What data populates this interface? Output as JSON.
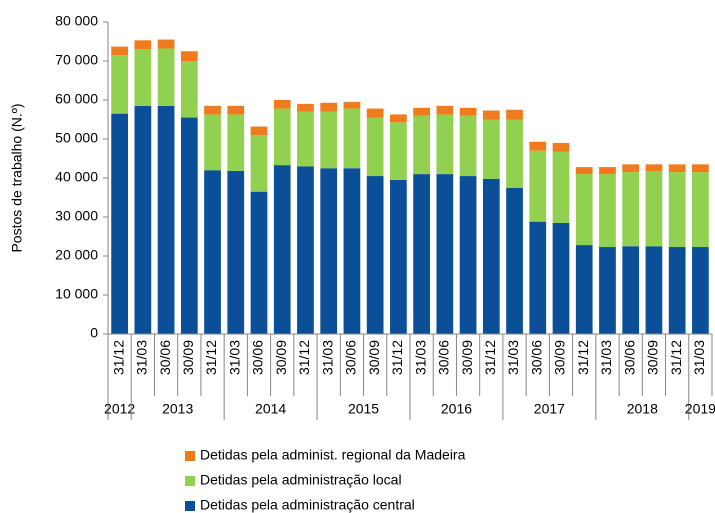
{
  "chart_data": {
    "type": "stacked_bar",
    "y_axis_label": "Postos de trabalho (N.º)",
    "categories": [
      "31/12",
      "31/03",
      "30/06",
      "30/09",
      "31/12",
      "31/03",
      "30/06",
      "30/09",
      "31/12",
      "31/03",
      "30/06",
      "30/09",
      "31/12",
      "31/03",
      "30/06",
      "30/09",
      "31/12",
      "31/03",
      "30/06",
      "30/09",
      "31/12",
      "31/03",
      "30/06",
      "30/09",
      "31/12",
      "31/03"
    ],
    "year_groups": [
      {
        "label": "2012",
        "span": 1
      },
      {
        "label": "2013",
        "span": 4
      },
      {
        "label": "2014",
        "span": 4
      },
      {
        "label": "2015",
        "span": 4
      },
      {
        "label": "2016",
        "span": 4
      },
      {
        "label": "2017",
        "span": 4
      },
      {
        "label": "2018",
        "span": 4
      },
      {
        "label": "2019",
        "span": 1
      }
    ],
    "series": [
      {
        "name": "Detidas pela administração central",
        "color": "#0b4f99",
        "values": [
          56500,
          58500,
          58500,
          55500,
          42000,
          41800,
          36500,
          43300,
          43000,
          42500,
          42500,
          40500,
          39500,
          41000,
          41000,
          40500,
          39800,
          37500,
          28800,
          28500,
          22800,
          22300,
          22500,
          22500,
          22300,
          22300
        ]
      },
      {
        "name": "Detidas pela administração local",
        "color": "#92d050",
        "values": [
          15000,
          14500,
          14700,
          14500,
          14300,
          14500,
          14500,
          14500,
          14000,
          14500,
          15300,
          15000,
          14800,
          15000,
          15300,
          15500,
          15200,
          17500,
          18200,
          18300,
          18200,
          18700,
          19000,
          19300,
          19200,
          19200
        ]
      },
      {
        "name": "Detidas pela administ. regional da Madeira",
        "color": "#f07a1c",
        "values": [
          2200,
          2300,
          2300,
          2500,
          2200,
          2200,
          2200,
          2200,
          2000,
          2300,
          1700,
          2300,
          2000,
          2000,
          2200,
          2000,
          2300,
          2500,
          2300,
          2200,
          1800,
          1800,
          2000,
          1700,
          2000,
          2000
        ]
      }
    ],
    "ylim": [
      0,
      80000
    ],
    "yticks": [
      {
        "value": 0,
        "label": "0"
      },
      {
        "value": 10000,
        "label": "10 000"
      },
      {
        "value": 20000,
        "label": "20 000"
      },
      {
        "value": 30000,
        "label": "30 000"
      },
      {
        "value": 40000,
        "label": "40 000"
      },
      {
        "value": 50000,
        "label": "50 000"
      },
      {
        "value": 60000,
        "label": "60 000"
      },
      {
        "value": 70000,
        "label": "70 000"
      },
      {
        "value": 80000,
        "label": "80 000"
      }
    ]
  }
}
